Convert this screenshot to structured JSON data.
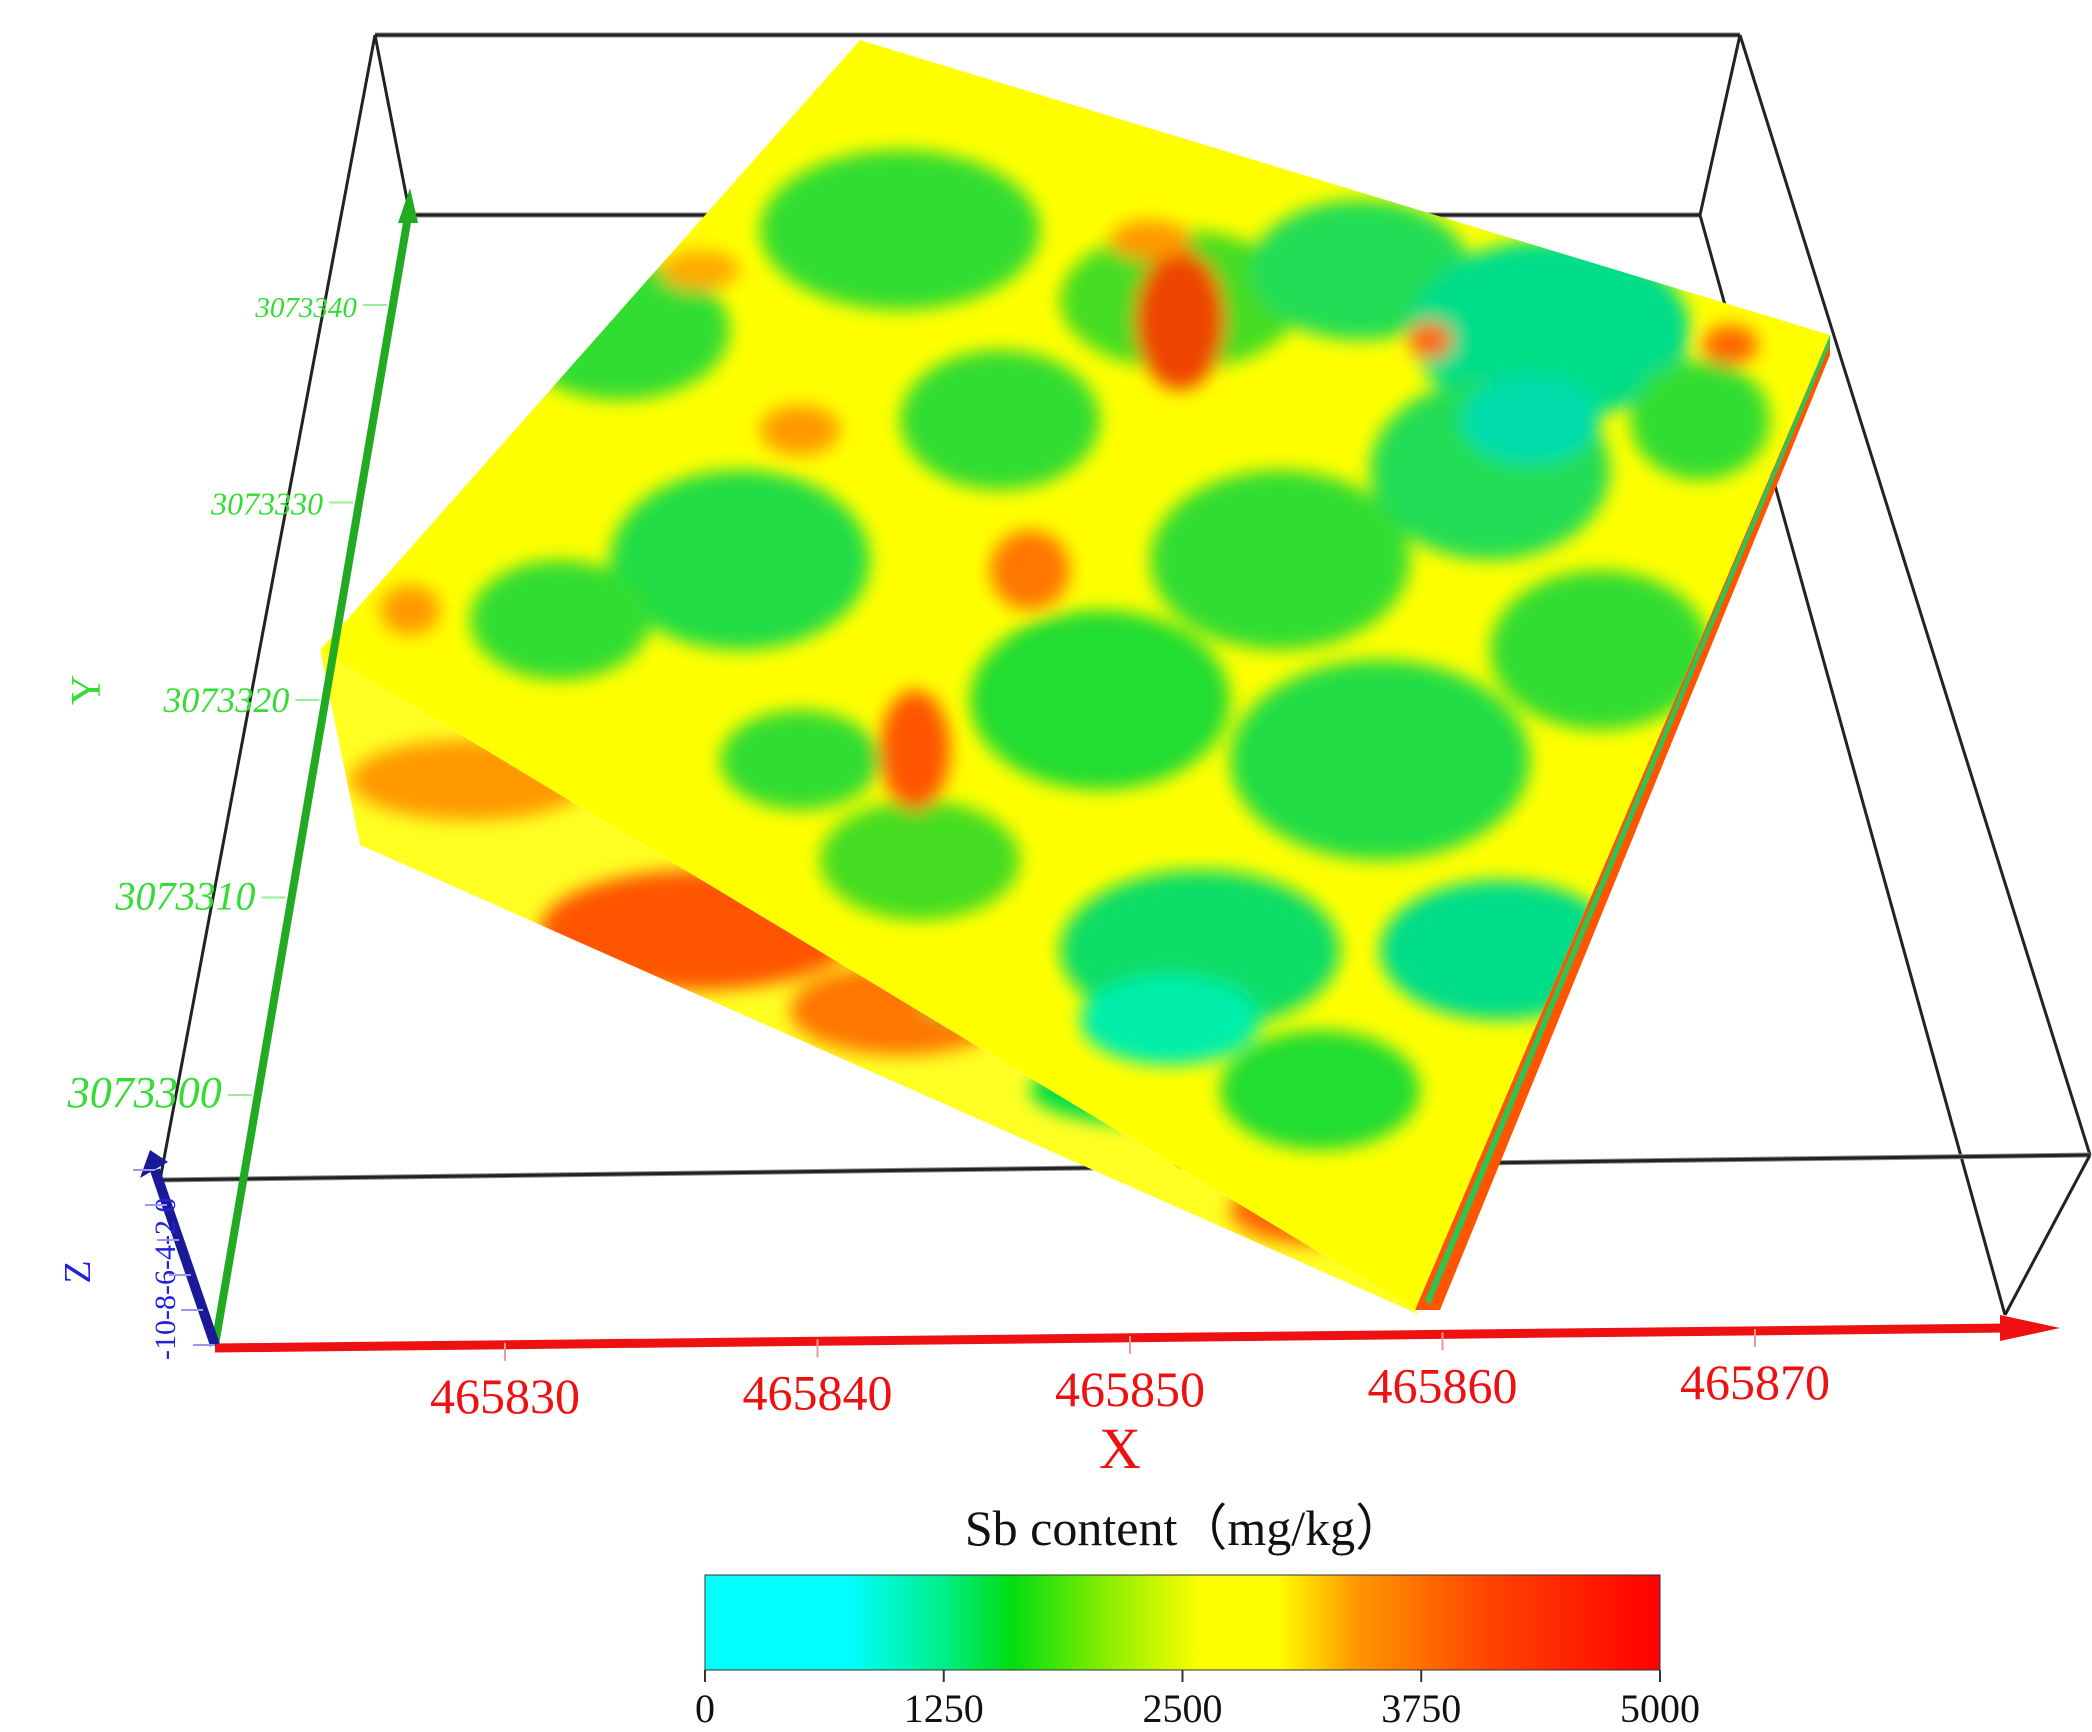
{
  "chart_data": {
    "type": "heatmap",
    "subtype": "3d-block-model",
    "axes": {
      "x": {
        "label": "X",
        "ticks": [
          465830,
          465840,
          465850,
          465860,
          465870
        ],
        "color": "#ee1111"
      },
      "y": {
        "label": "Y",
        "ticks": [
          3073300,
          3073310,
          3073320,
          3073330,
          3073340
        ],
        "color": "#33dd33"
      },
      "z": {
        "label": "Z",
        "ticks": [
          -10,
          -8,
          -6,
          -4,
          -2,
          0
        ],
        "tick_text": "-10-8-6-4-2 0",
        "color": "#2222dd"
      }
    },
    "colorbar": {
      "label": "Sb content（mg/kg）",
      "ticks": [
        0,
        1250,
        2500,
        3750,
        5000
      ],
      "range": [
        0,
        5000
      ],
      "colors": [
        "#00ffff",
        "#00ff88",
        "#00dd00",
        "#88ee00",
        "#ffff00",
        "#ffdd00",
        "#ff8800",
        "#ff4400",
        "#ff0000"
      ]
    },
    "surface_palette": {
      "low": "#00eeee",
      "green": "#22dd33",
      "yellow": "#ffff00",
      "orange": "#ff8800",
      "red": "#ee3300"
    }
  }
}
